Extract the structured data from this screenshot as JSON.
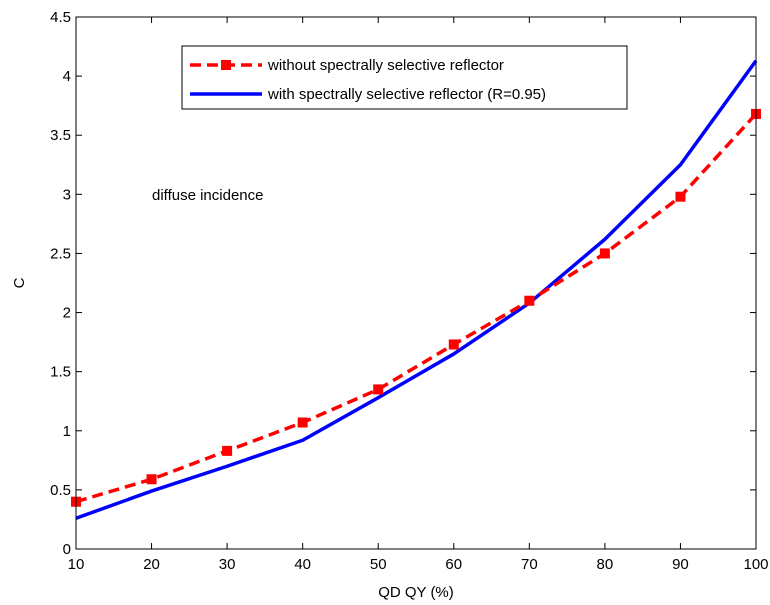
{
  "chart_data": {
    "type": "line",
    "xlabel": "QD QY (%)",
    "ylabel": "C",
    "xlim": [
      10,
      100
    ],
    "ylim": [
      0,
      4.5
    ],
    "xticks": [
      10,
      20,
      30,
      40,
      50,
      60,
      70,
      80,
      90,
      100
    ],
    "yticks": [
      0,
      0.5,
      1,
      1.5,
      2,
      2.5,
      3,
      3.5,
      4,
      4.5
    ],
    "xtick_labels": [
      "10",
      "20",
      "30",
      "40",
      "50",
      "60",
      "70",
      "80",
      "90",
      "100"
    ],
    "ytick_labels": [
      "0",
      "0.5",
      "1",
      "1.5",
      "2",
      "2.5",
      "3",
      "3.5",
      "4",
      "4.5"
    ],
    "grid": false,
    "legend_position": "top-right",
    "annotation": "diffuse incidence",
    "series": [
      {
        "name": "without spectrally selective reflector",
        "color": "#ff0000",
        "style": "dashed",
        "marker": "square",
        "x": [
          10,
          20,
          30,
          40,
          50,
          60,
          70,
          80,
          90,
          100
        ],
        "y": [
          0.4,
          0.59,
          0.83,
          1.07,
          1.35,
          1.73,
          2.1,
          2.5,
          2.98,
          3.68
        ]
      },
      {
        "name": "with spectrally selective reflector (R=0.95)",
        "color": "#0000ff",
        "style": "solid",
        "marker": "none",
        "x": [
          10,
          20,
          30,
          40,
          50,
          60,
          70,
          80,
          90,
          100
        ],
        "y": [
          0.26,
          0.49,
          0.7,
          0.92,
          1.28,
          1.65,
          2.08,
          2.62,
          3.25,
          4.13
        ]
      }
    ]
  }
}
